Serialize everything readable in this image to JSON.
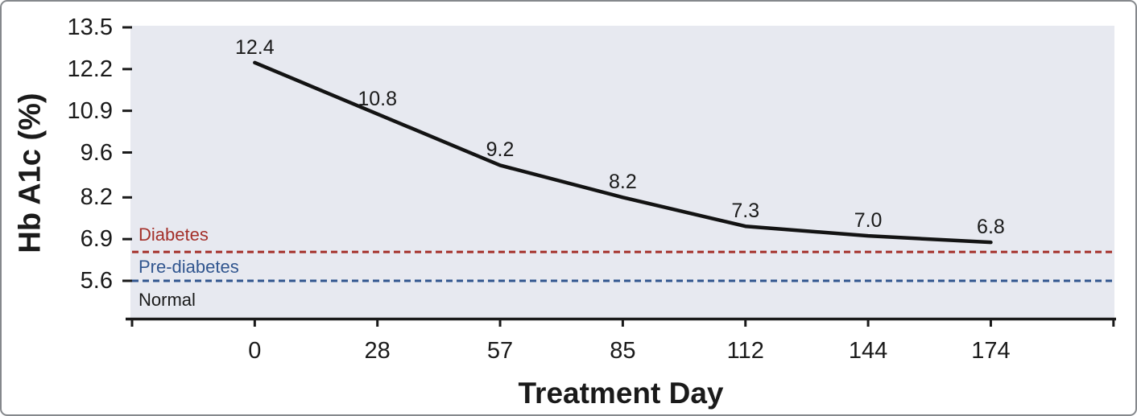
{
  "chart_data": {
    "type": "line",
    "title": "",
    "xlabel": "Treatment Day",
    "ylabel": "Hb A1c (%)",
    "x": [
      0,
      28,
      57,
      85,
      112,
      144,
      174
    ],
    "x_tick_labels": [
      "0",
      "28",
      "57",
      "85",
      "112",
      "144",
      "174"
    ],
    "y_ticks": [
      13.5,
      12.2,
      10.9,
      9.6,
      8.2,
      6.9,
      5.6
    ],
    "y_tick_labels": [
      "13.5",
      "12.2",
      "10.9",
      "9.6",
      "8.2",
      "6.9",
      "5.6"
    ],
    "ylim": [
      5.6,
      13.5
    ],
    "grid": "off",
    "legend": "none",
    "plot_bg_color": "#e7e9f0",
    "series": [
      {
        "name": "hb-a1c",
        "values": [
          12.4,
          10.8,
          9.2,
          8.2,
          7.3,
          7.0,
          6.8
        ],
        "point_labels": [
          "12.4",
          "10.8",
          "9.2",
          "8.2",
          "7.3",
          "7.0",
          "6.8"
        ],
        "color": "#131313"
      }
    ],
    "reference_lines": [
      {
        "name": "diabetes-threshold",
        "label": "Diabetes",
        "value": 6.5,
        "color": "#a4302a",
        "style": "dashed"
      },
      {
        "name": "prediabetes-threshold",
        "label": "Pre-diabetes",
        "value": 5.6,
        "color": "#31568f",
        "style": "dashed"
      }
    ],
    "zone_labels": [
      {
        "name": "normal-zone",
        "label": "Normal",
        "color": "#1a1a1a"
      }
    ]
  }
}
